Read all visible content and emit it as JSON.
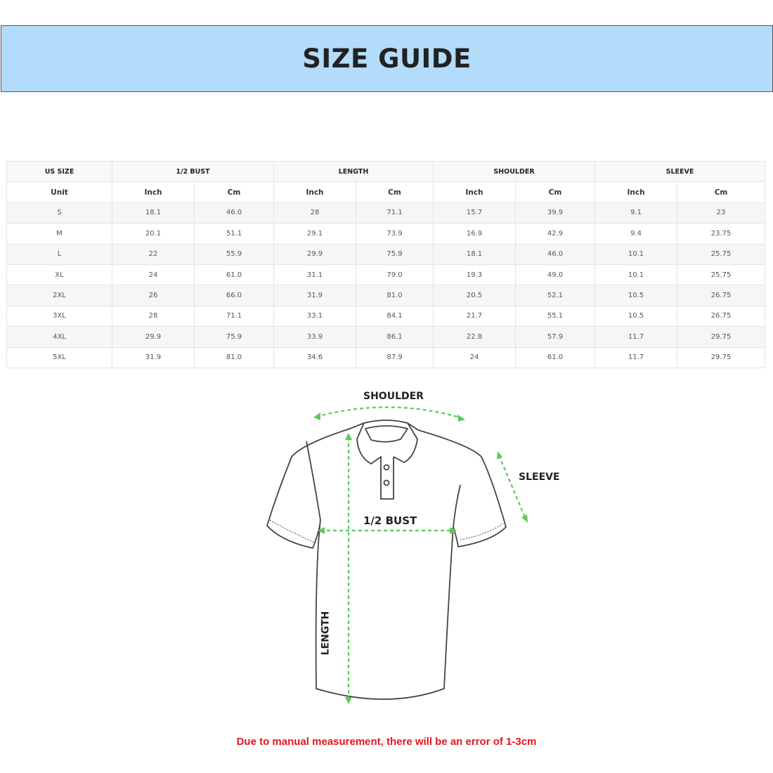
{
  "title": "SIZE GUIDE",
  "table": {
    "groups": [
      "US SIZE",
      "1/2 BUST",
      "LENGTH",
      "SHOULDER",
      "SLEEVE"
    ],
    "unit_row": [
      "Unit",
      "Inch",
      "Cm",
      "Inch",
      "Cm",
      "Inch",
      "Cm",
      "Inch",
      "Cm"
    ],
    "rows": [
      [
        "S",
        "18.1",
        "46.0",
        "28",
        "71.1",
        "15.7",
        "39.9",
        "9.1",
        "23"
      ],
      [
        "M",
        "20.1",
        "51.1",
        "29.1",
        "73.9",
        "16.9",
        "42.9",
        "9.4",
        "23.75"
      ],
      [
        "L",
        "22",
        "55.9",
        "29.9",
        "75.9",
        "18.1",
        "46.0",
        "10.1",
        "25.75"
      ],
      [
        "XL",
        "24",
        "61.0",
        "31.1",
        "79.0",
        "19.3",
        "49.0",
        "10.1",
        "25.75"
      ],
      [
        "2XL",
        "26",
        "66.0",
        "31.9",
        "81.0",
        "20.5",
        "52.1",
        "10.5",
        "26.75"
      ],
      [
        "3XL",
        "28",
        "71.1",
        "33.1",
        "84.1",
        "21.7",
        "55.1",
        "10.5",
        "26.75"
      ],
      [
        "4XL",
        "29.9",
        "75.9",
        "33.9",
        "86.1",
        "22.8",
        "57.9",
        "11.7",
        "29.75"
      ],
      [
        "5XL",
        "31.9",
        "81.0",
        "34.6",
        "87.9",
        "24",
        "61.0",
        "11.7",
        "29.75"
      ]
    ]
  },
  "diagram": {
    "shoulder_label": "SHOULDER",
    "sleeve_label": "SLEEVE",
    "bust_label": "1/2 BUST",
    "length_label": "LENGTH",
    "arrow_color": "#5cc95c"
  },
  "note": "Due to manual measurement, there will be an error of 1-3cm",
  "colors": {
    "banner": "#b3dcfa",
    "note": "#e8141c"
  }
}
